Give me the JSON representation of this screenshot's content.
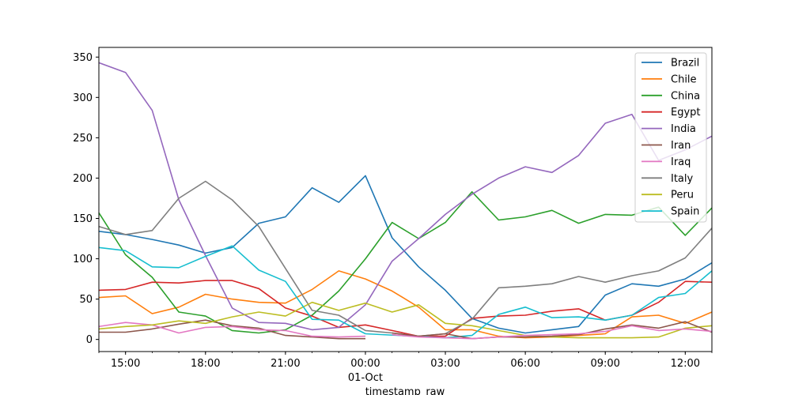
{
  "chart_data": {
    "type": "line",
    "title": "",
    "xlabel": "timestamp_raw",
    "ylabel": "",
    "ylim": [
      -15,
      362
    ],
    "x_range": [
      "14:00",
      "13:00"
    ],
    "x_ticks": [
      {
        "x": 1,
        "label": "15:00"
      },
      {
        "x": 4,
        "label": "18:00"
      },
      {
        "x": 7,
        "label": "21:00"
      },
      {
        "x": 10,
        "label": "00:00",
        "sublabel": "01-Oct"
      },
      {
        "x": 13,
        "label": "03:00"
      },
      {
        "x": 16,
        "label": "06:00"
      },
      {
        "x": 19,
        "label": "09:00"
      },
      {
        "x": 22,
        "label": "12:00"
      }
    ],
    "y_ticks": [
      0,
      50,
      100,
      150,
      200,
      250,
      300,
      350
    ],
    "x_hours": [
      0,
      1,
      2,
      3,
      4,
      5,
      6,
      7,
      8,
      9,
      10,
      11,
      12,
      13,
      14,
      15,
      16,
      17,
      18,
      19,
      20,
      21,
      22,
      23
    ],
    "legend_position": "upper right",
    "grid": false,
    "series": [
      {
        "name": "Brazil",
        "color": "#1f77b4",
        "values": [
          134,
          130,
          124,
          117,
          107,
          114,
          144,
          152,
          188,
          170,
          203,
          126,
          90,
          61,
          26,
          14,
          8,
          12,
          16,
          55,
          69,
          66,
          75,
          95
        ]
      },
      {
        "name": "Chile",
        "color": "#ff7f0e",
        "values": [
          52,
          54,
          32,
          40,
          56,
          50,
          46,
          45,
          62,
          85,
          75,
          60,
          40,
          12,
          12,
          4,
          2,
          3,
          5,
          7,
          28,
          30,
          20,
          34
        ]
      },
      {
        "name": "China",
        "color": "#2ca02c",
        "values": [
          157,
          105,
          77,
          34,
          29,
          11,
          8,
          12,
          30,
          60,
          100,
          145,
          125,
          145,
          183,
          148,
          152,
          160,
          144,
          155,
          154,
          164,
          129,
          163
        ]
      },
      {
        "name": "Egypt",
        "color": "#d62728",
        "values": [
          61,
          62,
          71,
          70,
          73,
          73,
          63,
          39,
          29,
          15,
          18,
          11,
          4,
          4,
          26,
          29,
          30,
          35,
          38,
          24,
          30,
          46,
          72,
          71
        ]
      },
      {
        "name": "India",
        "color": "#9467bd",
        "values": [
          343,
          331,
          284,
          173,
          104,
          39,
          21,
          20,
          12,
          15,
          43,
          97,
          125,
          155,
          180,
          200,
          214,
          207,
          228,
          268,
          279,
          222,
          235,
          252
        ]
      },
      {
        "name": "Iran",
        "color": "#8c564b",
        "values": [
          9,
          9,
          13,
          19,
          24,
          17,
          14,
          5,
          3,
          1,
          1,
          null,
          null,
          null,
          null,
          null,
          null,
          null,
          null,
          null,
          null,
          null,
          null,
          null
        ]
      },
      {
        "name": "Iraq",
        "color": "#e377c2",
        "values": [
          16,
          21,
          18,
          8,
          15,
          16,
          12,
          11,
          4,
          3,
          4,
          null,
          null,
          null,
          null,
          null,
          null,
          null,
          null,
          null,
          null,
          null,
          null,
          null
        ]
      },
      {
        "name": "Italy",
        "color": "#7f7f7f",
        "values": [
          140,
          130,
          135,
          175,
          196,
          173,
          140,
          88,
          36,
          30,
          11,
          8,
          4,
          7,
          25,
          64,
          66,
          69,
          78,
          71,
          79,
          85,
          101,
          138
        ]
      },
      {
        "name": "Peru",
        "color": "#bcbd22",
        "values": [
          13,
          16,
          18,
          23,
          20,
          28,
          34,
          29,
          46,
          36,
          45,
          34,
          43,
          20,
          17,
          11,
          5,
          3,
          2,
          2,
          2,
          3,
          14,
          17
        ]
      },
      {
        "name": "Spain",
        "color": "#17becf",
        "values": [
          114,
          110,
          90,
          89,
          103,
          116,
          86,
          72,
          25,
          24,
          7,
          null,
          null,
          null,
          null,
          null,
          null,
          null,
          null,
          null,
          null,
          null,
          null,
          null
        ]
      }
    ],
    "extra_segments": [
      {
        "color": "#17becf",
        "points": [
          [
            10,
            7
          ],
          [
            13,
            2
          ],
          [
            14,
            5
          ],
          [
            15,
            31
          ],
          [
            16,
            40
          ],
          [
            17,
            27
          ],
          [
            18,
            28
          ],
          [
            19,
            24
          ],
          [
            20,
            30
          ],
          [
            21,
            52
          ],
          [
            22,
            57
          ],
          [
            23,
            85
          ]
        ]
      },
      {
        "color": "#8c564b",
        "points": [
          [
            11,
            8
          ],
          [
            12,
            4
          ],
          [
            13,
            7
          ],
          [
            14,
            1
          ],
          [
            15,
            3
          ],
          [
            16,
            3
          ],
          [
            17,
            4
          ],
          [
            18,
            6
          ],
          [
            19,
            13
          ],
          [
            20,
            18
          ],
          [
            21,
            14
          ],
          [
            22,
            22
          ],
          [
            23,
            9
          ]
        ]
      },
      {
        "color": "#e377c2",
        "points": [
          [
            11,
            6
          ],
          [
            12,
            3
          ],
          [
            13,
            2
          ],
          [
            14,
            1
          ],
          [
            15,
            3
          ],
          [
            16,
            5
          ],
          [
            17,
            6
          ],
          [
            18,
            7
          ],
          [
            19,
            10
          ],
          [
            20,
            17
          ],
          [
            21,
            11
          ],
          [
            22,
            13
          ],
          [
            23,
            10
          ]
        ]
      }
    ]
  }
}
